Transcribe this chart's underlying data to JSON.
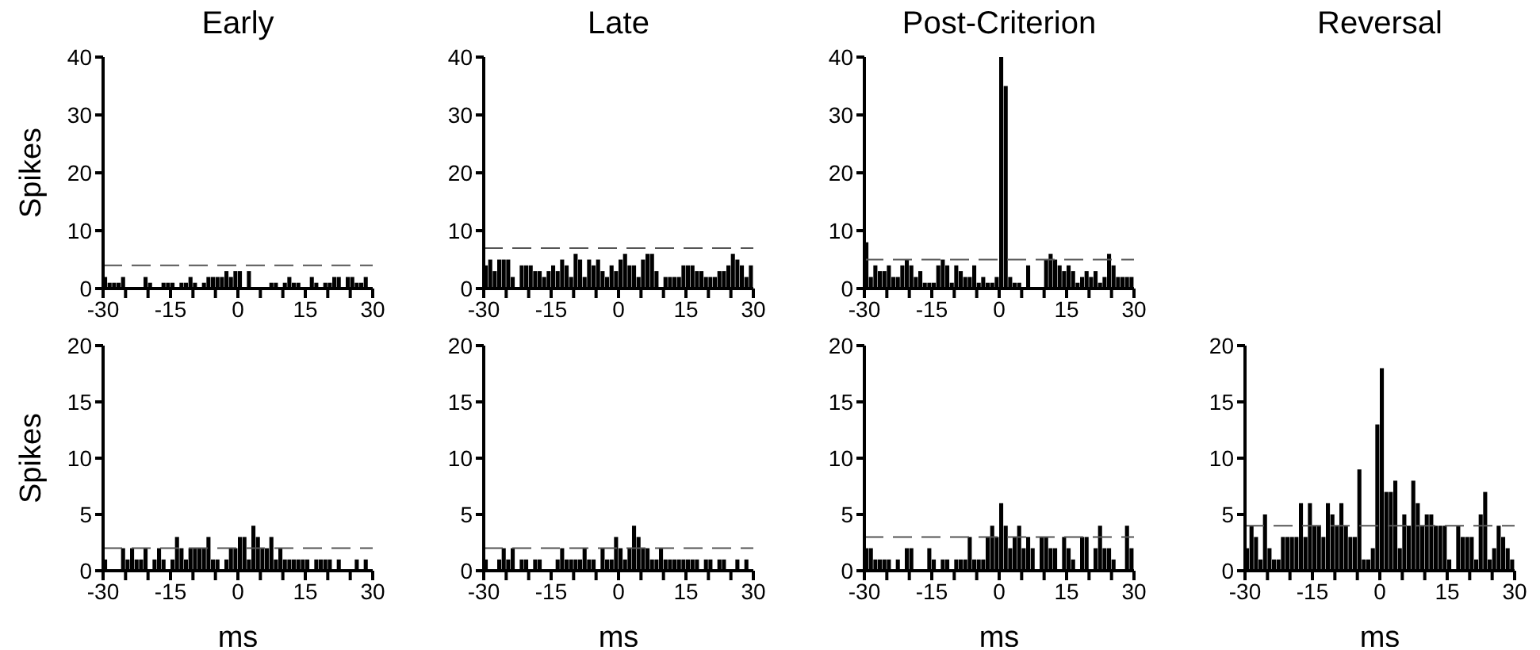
{
  "chart_data": [
    {
      "type": "histogram",
      "title": "Early",
      "ylabel": "Spikes",
      "color": "#000000",
      "bins": [
        -30,
        -29,
        -28,
        -27,
        -26,
        -25,
        -24,
        -23,
        -22,
        -21,
        -20,
        -19,
        -18,
        -17,
        -16,
        -15,
        -14,
        -13,
        -12,
        -11,
        -10,
        -9,
        -8,
        -7,
        -6,
        -5,
        -4,
        -3,
        -2,
        -1,
        0,
        1,
        2,
        3,
        4,
        5,
        6,
        7,
        8,
        9,
        10,
        11,
        12,
        13,
        14,
        15,
        16,
        17,
        18,
        19,
        20,
        21,
        22,
        23,
        24,
        25,
        26,
        27,
        28,
        29,
        30
      ],
      "values": [
        2,
        1,
        1,
        1,
        2,
        0,
        0,
        0,
        0,
        2,
        1,
        0,
        0,
        1,
        1,
        1,
        0,
        1,
        1,
        2,
        1,
        0,
        1,
        2,
        2,
        2,
        2,
        3,
        2,
        3,
        3,
        0,
        3,
        0,
        0,
        0,
        0,
        1,
        1,
        0,
        1,
        2,
        1,
        1,
        0,
        0,
        2,
        1,
        0,
        1,
        1,
        2,
        2,
        0,
        2,
        2,
        1,
        1,
        2,
        0
      ],
      "xlim": [
        -30,
        30
      ],
      "xticks": [
        -30,
        {
          "value": -25,
          "label": null
        },
        {
          "value": -20,
          "label": null
        },
        -15,
        {
          "value": -10,
          "label": null
        },
        {
          "value": -5,
          "label": null
        },
        0,
        {
          "value": 5,
          "label": null
        },
        {
          "value": 10,
          "label": null
        },
        15,
        {
          "value": 20,
          "label": null
        },
        {
          "value": 25,
          "label": null
        },
        30
      ],
      "ylim": [
        0,
        40
      ],
      "yticks": [
        0,
        10,
        20,
        30,
        40
      ],
      "ref_lines": [
        {
          "axis": "y",
          "value": 4,
          "color": "#555555",
          "line_style": "dashed"
        }
      ]
    },
    {
      "type": "histogram",
      "title": "Late",
      "color": "#000000",
      "bins": [
        -30,
        -29,
        -28,
        -27,
        -26,
        -25,
        -24,
        -23,
        -22,
        -21,
        -20,
        -19,
        -18,
        -17,
        -16,
        -15,
        -14,
        -13,
        -12,
        -11,
        -10,
        -9,
        -8,
        -7,
        -6,
        -5,
        -4,
        -3,
        -2,
        -1,
        0,
        1,
        2,
        3,
        4,
        5,
        6,
        7,
        8,
        9,
        10,
        11,
        12,
        13,
        14,
        15,
        16,
        17,
        18,
        19,
        20,
        21,
        22,
        23,
        24,
        25,
        26,
        27,
        28,
        29,
        30
      ],
      "values": [
        4,
        5,
        3,
        5,
        5,
        5,
        2,
        0,
        4,
        4,
        4,
        3,
        3,
        2,
        3,
        4,
        3,
        5,
        4,
        2,
        6,
        5,
        2,
        5,
        4,
        5,
        3,
        2,
        4,
        3,
        5,
        6,
        4,
        4,
        2,
        5,
        6,
        6,
        3,
        0,
        2,
        2,
        2,
        2,
        4,
        4,
        4,
        3,
        3,
        2,
        2,
        2,
        3,
        3,
        4,
        6,
        5,
        4,
        2,
        4
      ],
      "xlim": [
        -30,
        30
      ],
      "xticks": [
        -30,
        {
          "value": -25,
          "label": null
        },
        {
          "value": -20,
          "label": null
        },
        -15,
        {
          "value": -10,
          "label": null
        },
        {
          "value": -5,
          "label": null
        },
        0,
        {
          "value": 5,
          "label": null
        },
        {
          "value": 10,
          "label": null
        },
        15,
        {
          "value": 20,
          "label": null
        },
        {
          "value": 25,
          "label": null
        },
        30
      ],
      "ylim": [
        0,
        40
      ],
      "yticks": [
        0,
        10,
        20,
        30,
        40
      ],
      "ref_lines": [
        {
          "axis": "y",
          "value": 7,
          "color": "#555555",
          "line_style": "dashed"
        }
      ]
    },
    {
      "type": "histogram",
      "title": "Post-Criterion",
      "color": "#000000",
      "bins": [
        -30,
        -29,
        -28,
        -27,
        -26,
        -25,
        -24,
        -23,
        -22,
        -21,
        -20,
        -19,
        -18,
        -17,
        -16,
        -15,
        -14,
        -13,
        -12,
        -11,
        -10,
        -9,
        -8,
        -7,
        -6,
        -5,
        -4,
        -3,
        -2,
        -1,
        0,
        1,
        2,
        3,
        4,
        5,
        6,
        7,
        8,
        9,
        10,
        11,
        12,
        13,
        14,
        15,
        16,
        17,
        18,
        19,
        20,
        21,
        22,
        23,
        24,
        25,
        26,
        27,
        28,
        29,
        30
      ],
      "values": [
        8,
        2,
        4,
        3,
        3,
        4,
        2,
        2,
        4,
        5,
        4,
        2,
        3,
        1,
        1,
        1,
        4,
        5,
        4,
        1,
        4,
        3,
        2,
        2,
        4,
        1,
        2,
        1,
        1,
        2,
        40,
        35,
        2,
        1,
        1,
        0,
        4,
        0,
        0,
        0,
        5,
        6,
        5,
        4,
        3,
        4,
        3,
        1,
        2,
        3,
        2,
        3,
        1,
        2,
        6,
        4,
        2,
        2,
        2,
        2
      ],
      "xlim": [
        -30,
        30
      ],
      "xticks": [
        -30,
        {
          "value": -25,
          "label": null
        },
        {
          "value": -20,
          "label": null
        },
        -15,
        {
          "value": -10,
          "label": null
        },
        {
          "value": -5,
          "label": null
        },
        0,
        {
          "value": 5,
          "label": null
        },
        {
          "value": 10,
          "label": null
        },
        15,
        {
          "value": 20,
          "label": null
        },
        {
          "value": 25,
          "label": null
        },
        30
      ],
      "ylim": [
        0,
        40
      ],
      "yticks": [
        0,
        10,
        20,
        30,
        40
      ],
      "ref_lines": [
        {
          "axis": "y",
          "value": 5,
          "color": "#555555",
          "line_style": "dashed"
        }
      ]
    },
    {
      "type": "histogram",
      "ylabel": "Spikes",
      "xlabel": "ms",
      "color": "#000000",
      "bins": [
        -30,
        -29,
        -28,
        -27,
        -26,
        -25,
        -24,
        -23,
        -22,
        -21,
        -20,
        -19,
        -18,
        -17,
        -16,
        -15,
        -14,
        -13,
        -12,
        -11,
        -10,
        -9,
        -8,
        -7,
        -6,
        -5,
        -4,
        -3,
        -2,
        -1,
        0,
        1,
        2,
        3,
        4,
        5,
        6,
        7,
        8,
        9,
        10,
        11,
        12,
        13,
        14,
        15,
        16,
        17,
        18,
        19,
        20,
        21,
        22,
        23,
        24,
        25,
        26,
        27,
        28,
        29,
        30
      ],
      "values": [
        1,
        0,
        0,
        0,
        2,
        1,
        2,
        1,
        1,
        2,
        0,
        1,
        2,
        1,
        0,
        1,
        3,
        2,
        1,
        2,
        2,
        2,
        2,
        3,
        1,
        1,
        0,
        1,
        2,
        2,
        3,
        3,
        1,
        4,
        3,
        2,
        2,
        3,
        1,
        2,
        1,
        1,
        1,
        1,
        1,
        1,
        0,
        1,
        1,
        1,
        1,
        0,
        1,
        0,
        0,
        0,
        1,
        0,
        1,
        0
      ],
      "xlim": [
        -30,
        30
      ],
      "xticks": [
        -30,
        {
          "value": -25,
          "label": null
        },
        {
          "value": -20,
          "label": null
        },
        -15,
        {
          "value": -10,
          "label": null
        },
        {
          "value": -5,
          "label": null
        },
        0,
        {
          "value": 5,
          "label": null
        },
        {
          "value": 10,
          "label": null
        },
        15,
        {
          "value": 20,
          "label": null
        },
        {
          "value": 25,
          "label": null
        },
        30
      ],
      "ylim": [
        0,
        20
      ],
      "yticks": [
        0,
        5,
        10,
        15,
        20
      ],
      "ref_lines": [
        {
          "axis": "y",
          "value": 2,
          "color": "#555555",
          "line_style": "dashed"
        }
      ]
    },
    {
      "type": "histogram",
      "xlabel": "ms",
      "color": "#000000",
      "bins": [
        -30,
        -29,
        -28,
        -27,
        -26,
        -25,
        -24,
        -23,
        -22,
        -21,
        -20,
        -19,
        -18,
        -17,
        -16,
        -15,
        -14,
        -13,
        -12,
        -11,
        -10,
        -9,
        -8,
        -7,
        -6,
        -5,
        -4,
        -3,
        -2,
        -1,
        0,
        1,
        2,
        3,
        4,
        5,
        6,
        7,
        8,
        9,
        10,
        11,
        12,
        13,
        14,
        15,
        16,
        17,
        18,
        19,
        20,
        21,
        22,
        23,
        24,
        25,
        26,
        27,
        28,
        29,
        30
      ],
      "values": [
        1,
        0,
        0,
        1,
        2,
        1,
        2,
        0,
        1,
        1,
        0,
        1,
        1,
        0,
        0,
        0,
        1,
        2,
        1,
        1,
        1,
        1,
        2,
        1,
        1,
        0,
        2,
        1,
        1,
        3,
        2,
        1,
        2,
        4,
        3,
        2,
        2,
        1,
        1,
        2,
        1,
        1,
        1,
        1,
        1,
        1,
        1,
        1,
        0,
        1,
        1,
        0,
        1,
        1,
        0,
        0,
        1,
        0,
        1,
        0
      ],
      "xlim": [
        -30,
        30
      ],
      "xticks": [
        -30,
        {
          "value": -25,
          "label": null
        },
        {
          "value": -20,
          "label": null
        },
        -15,
        {
          "value": -10,
          "label": null
        },
        {
          "value": -5,
          "label": null
        },
        0,
        {
          "value": 5,
          "label": null
        },
        {
          "value": 10,
          "label": null
        },
        15,
        {
          "value": 20,
          "label": null
        },
        {
          "value": 25,
          "label": null
        },
        30
      ],
      "ylim": [
        0,
        20
      ],
      "yticks": [
        0,
        5,
        10,
        15,
        20
      ],
      "ref_lines": [
        {
          "axis": "y",
          "value": 2,
          "color": "#555555",
          "line_style": "dashed"
        }
      ]
    },
    {
      "type": "histogram",
      "xlabel": "ms",
      "color": "#000000",
      "bins": [
        -30,
        -29,
        -28,
        -27,
        -26,
        -25,
        -24,
        -23,
        -22,
        -21,
        -20,
        -19,
        -18,
        -17,
        -16,
        -15,
        -14,
        -13,
        -12,
        -11,
        -10,
        -9,
        -8,
        -7,
        -6,
        -5,
        -4,
        -3,
        -2,
        -1,
        0,
        1,
        2,
        3,
        4,
        5,
        6,
        7,
        8,
        9,
        10,
        11,
        12,
        13,
        14,
        15,
        16,
        17,
        18,
        19,
        20,
        21,
        22,
        23,
        24,
        25,
        26,
        27,
        28,
        29,
        30
      ],
      "values": [
        2,
        2,
        1,
        1,
        1,
        1,
        0,
        1,
        0,
        2,
        2,
        0,
        0,
        0,
        2,
        1,
        0,
        1,
        1,
        0,
        1,
        1,
        1,
        3,
        1,
        1,
        1,
        3,
        4,
        3,
        6,
        4,
        2,
        3,
        4,
        2,
        3,
        2,
        0,
        3,
        3,
        2,
        2,
        0,
        3,
        2,
        1,
        0,
        3,
        3,
        0,
        2,
        4,
        2,
        2,
        1,
        0,
        0,
        4,
        2
      ],
      "xlim": [
        -30,
        30
      ],
      "xticks": [
        -30,
        {
          "value": -25,
          "label": null
        },
        {
          "value": -20,
          "label": null
        },
        -15,
        {
          "value": -10,
          "label": null
        },
        {
          "value": -5,
          "label": null
        },
        0,
        {
          "value": 5,
          "label": null
        },
        {
          "value": 10,
          "label": null
        },
        15,
        {
          "value": 20,
          "label": null
        },
        {
          "value": 25,
          "label": null
        },
        30
      ],
      "ylim": [
        0,
        20
      ],
      "yticks": [
        0,
        5,
        10,
        15,
        20
      ],
      "ref_lines": [
        {
          "axis": "y",
          "value": 3,
          "color": "#555555",
          "line_style": "dashed"
        }
      ]
    },
    {
      "type": "histogram",
      "title": "Reversal",
      "xlabel": "ms",
      "color": "#000000",
      "bins": [
        -30,
        -29,
        -28,
        -27,
        -26,
        -25,
        -24,
        -23,
        -22,
        -21,
        -20,
        -19,
        -18,
        -17,
        -16,
        -15,
        -14,
        -13,
        -12,
        -11,
        -10,
        -9,
        -8,
        -7,
        -6,
        -5,
        -4,
        -3,
        -2,
        -1,
        0,
        1,
        2,
        3,
        4,
        5,
        6,
        7,
        8,
        9,
        10,
        11,
        12,
        13,
        14,
        15,
        16,
        17,
        18,
        19,
        20,
        21,
        22,
        23,
        24,
        25,
        26,
        27,
        28,
        29,
        30
      ],
      "values": [
        2,
        4,
        3,
        1,
        5,
        2,
        1,
        1,
        3,
        3,
        3,
        3,
        6,
        3,
        6,
        4,
        4,
        3,
        6,
        5,
        4,
        6,
        4,
        3,
        3,
        9,
        1,
        1,
        2,
        13,
        18,
        7,
        7,
        8,
        2,
        5,
        4,
        8,
        6,
        4,
        5,
        5,
        4,
        4,
        4,
        1,
        0,
        4,
        3,
        3,
        3,
        1,
        5,
        7,
        1,
        2,
        4,
        3,
        2,
        1
      ],
      "xlim": [
        -30,
        30
      ],
      "xticks": [
        -30,
        {
          "value": -25,
          "label": null
        },
        {
          "value": -20,
          "label": null
        },
        -15,
        {
          "value": -10,
          "label": null
        },
        {
          "value": -5,
          "label": null
        },
        0,
        {
          "value": 5,
          "label": null
        },
        {
          "value": 10,
          "label": null
        },
        15,
        {
          "value": 20,
          "label": null
        },
        {
          "value": 25,
          "label": null
        },
        30
      ],
      "ylim": [
        0,
        20
      ],
      "yticks": [
        0,
        5,
        10,
        15,
        20
      ],
      "ref_lines": [
        {
          "axis": "y",
          "value": 4,
          "color": "#555555",
          "line_style": "dashed"
        }
      ]
    }
  ]
}
